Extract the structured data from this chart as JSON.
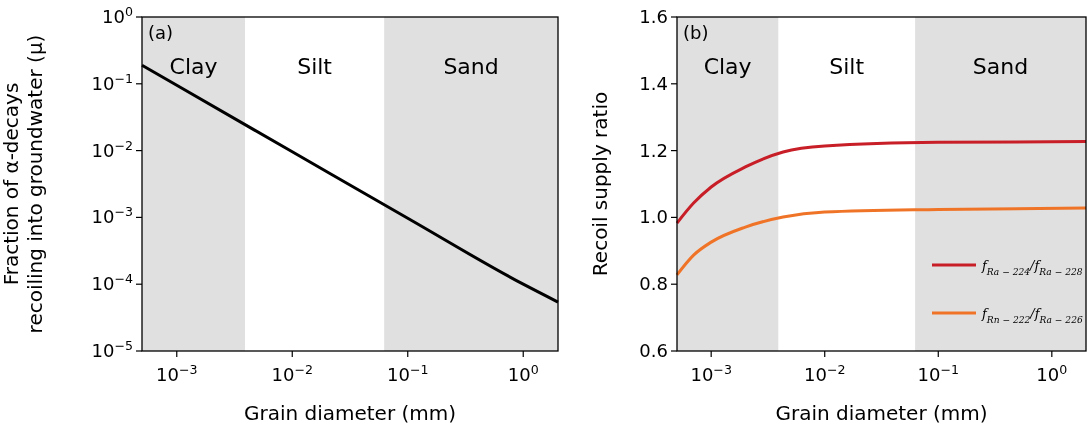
{
  "chart_data": [
    {
      "type": "line",
      "xlabel": "Grain diameter (mm)",
      "ylabel": "Fraction of α-decays\nrecoiling into groundwater (μ)",
      "log": "xy",
      "xlim": [
        0.0005,
        2
      ],
      "xticks": [
        {
          "value": 0.001,
          "label": "10$^{−3}$"
        },
        {
          "value": 0.01,
          "label": "10$^{−2}$"
        },
        {
          "value": 0.1,
          "label": "10$^{−1}$"
        },
        {
          "value": 1,
          "label": "10$^{0}$"
        }
      ],
      "ylim": [
        1e-05,
        1
      ],
      "yticks": [
        {
          "value": 1e-05,
          "label": "10$^{−5}$"
        },
        {
          "value": 0.0001,
          "label": "10$^{−4}$"
        },
        {
          "value": 0.001,
          "label": "10$^{−3}$"
        },
        {
          "value": 0.01,
          "label": "10$^{−2}$"
        },
        {
          "value": 0.1,
          "label": "10$^{−1}$"
        },
        {
          "value": 1,
          "label": "10$^{0}$"
        }
      ],
      "x": [
        0.0005,
        0.001,
        0.01,
        0.1,
        1,
        2
      ],
      "series": [
        {
          "color": "#000000",
          "values": [
            0.19,
            0.095,
            0.0096,
            0.00097,
            0.0001,
            5.4e-05
          ]
        }
      ],
      "bands": [
        {
          "axis": "x",
          "from": 0.0005,
          "to": 0.0039,
          "label": "Clay",
          "color": "#e0e0e0"
        },
        {
          "axis": "x",
          "from": 0.0625,
          "to": 2,
          "label": "Sand",
          "color": "#e0e0e0"
        }
      ],
      "annotations": [
        "(a)",
        "Silt"
      ],
      "grid": false,
      "legend": false
    },
    {
      "type": "line",
      "xlabel": "Grain diameter (mm)",
      "ylabel": "Recoil supply ratio",
      "log": "x",
      "xlim": [
        0.0005,
        2
      ],
      "xticks": [
        {
          "value": 0.001,
          "label": "10$^{−3}$"
        },
        {
          "value": 0.01,
          "label": "10$^{−2}$"
        },
        {
          "value": 0.1,
          "label": "10$^{−1}$"
        },
        {
          "value": 1,
          "label": "10$^{0}$"
        }
      ],
      "ylim": [
        0.6,
        1.6
      ],
      "yticks": [
        0.6,
        0.8,
        {
          "value": 1,
          "label": "1.0"
        },
        1.2,
        1.4,
        1.6
      ],
      "x": [
        0.0005,
        0.0007,
        0.001,
        0.002,
        0.0043,
        0.01,
        0.1,
        2
      ],
      "series": [
        {
          "name": "f$_{Ra − 224}$/f$_{Ra − 228}$",
          "color": "#c81e28",
          "values": [
            0.983,
            1.043,
            1.091,
            1.151,
            1.196,
            1.214,
            1.225,
            1.227
          ]
        },
        {
          "name": "f$_{Rn − 222}$/f$_{Ra − 226}$",
          "color": "#f07428",
          "values": [
            0.828,
            0.887,
            0.926,
            0.971,
            1.001,
            1.016,
            1.024,
            1.028
          ]
        }
      ],
      "bands": [
        {
          "axis": "x",
          "from": 0.0005,
          "to": 0.0039,
          "label": "Clay",
          "color": "#e0e0e0"
        },
        {
          "axis": "x",
          "from": 0.0625,
          "to": 2,
          "label": "Sand",
          "color": "#e0e0e0"
        }
      ],
      "annotations": [
        "(b)",
        "Silt"
      ],
      "grid": false,
      "legend": "bottom right"
    }
  ]
}
